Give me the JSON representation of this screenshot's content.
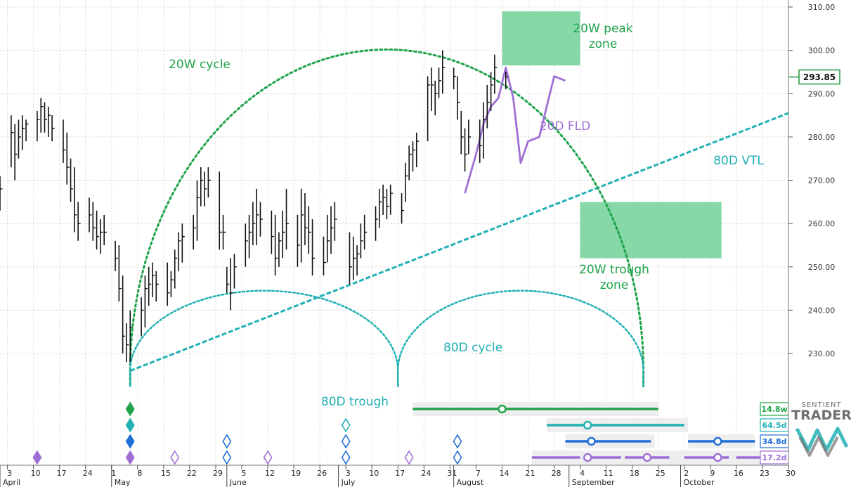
{
  "chart_data": {
    "type": "ohlc",
    "ylim": [
      220,
      312
    ],
    "x_range": [
      "2025-04-01",
      "2025-10-30"
    ],
    "y_ticks": [
      "310.00",
      "300.00",
      "290.00",
      "280.00",
      "270.00",
      "260.00",
      "250.00",
      "240.00",
      "230.00"
    ],
    "y_tick_values": [
      310,
      300,
      290,
      280,
      270,
      260,
      250,
      240,
      230
    ],
    "x_ticks": [
      "3",
      "10",
      "17",
      "24",
      "1",
      "8",
      "15",
      "22",
      "29",
      "5",
      "12",
      "19",
      "26",
      "3",
      "10",
      "17",
      "24",
      "31",
      "7",
      "14",
      "21",
      "28",
      "4",
      "11",
      "18",
      "25",
      "2",
      "9",
      "16",
      "23",
      "30"
    ],
    "x_tick_dates": [
      "2025-04-03",
      "2025-04-10",
      "2025-04-17",
      "2025-04-24",
      "2025-05-01",
      "2025-05-08",
      "2025-05-15",
      "2025-05-22",
      "2025-05-29",
      "2025-06-05",
      "2025-06-12",
      "2025-06-19",
      "2025-06-26",
      "2025-07-03",
      "2025-07-10",
      "2025-07-17",
      "2025-07-24",
      "2025-07-31",
      "2025-08-07",
      "2025-08-14",
      "2025-08-21",
      "2025-08-28",
      "2025-09-04",
      "2025-09-11",
      "2025-09-18",
      "2025-09-25",
      "2025-10-02",
      "2025-10-09",
      "2025-10-16",
      "2025-10-23",
      "2025-10-30"
    ],
    "months": [
      {
        "label": "April",
        "date": "2025-04-01"
      },
      {
        "label": "May",
        "date": "2025-05-01"
      },
      {
        "label": "June",
        "date": "2025-06-01"
      },
      {
        "label": "July",
        "date": "2025-07-01"
      },
      {
        "label": "August",
        "date": "2025-08-01"
      },
      {
        "label": "September",
        "date": "2025-09-01"
      },
      {
        "label": "October",
        "date": "2025-10-01"
      }
    ],
    "last_price": {
      "label": "293.85",
      "value": 293.85,
      "color": "#1a9a3c"
    },
    "price_bars": [
      {
        "date": "2025-04-01",
        "high": 271,
        "low": 263,
        "close": 268
      },
      {
        "date": "2025-04-04",
        "high": 285,
        "low": 273,
        "close": 281
      },
      {
        "date": "2025-04-05",
        "high": 283,
        "low": 270,
        "close": 276
      },
      {
        "date": "2025-04-06",
        "high": 284,
        "low": 275,
        "close": 280
      },
      {
        "date": "2025-04-07",
        "high": 285,
        "low": 277,
        "close": 282
      },
      {
        "date": "2025-04-08",
        "high": 284,
        "low": 279,
        "close": 283
      },
      {
        "date": "2025-04-11",
        "high": 286,
        "low": 279,
        "close": 284
      },
      {
        "date": "2025-04-12",
        "high": 289,
        "low": 281,
        "close": 287
      },
      {
        "date": "2025-04-13",
        "high": 288,
        "low": 281,
        "close": 284
      },
      {
        "date": "2025-04-14",
        "high": 287,
        "low": 280,
        "close": 285
      },
      {
        "date": "2025-04-15",
        "high": 285,
        "low": 279,
        "close": 282
      },
      {
        "date": "2025-04-18",
        "high": 284,
        "low": 274,
        "close": 277
      },
      {
        "date": "2025-04-19",
        "high": 281,
        "low": 269,
        "close": 273
      },
      {
        "date": "2025-04-20",
        "high": 275,
        "low": 265,
        "close": 268
      },
      {
        "date": "2025-04-21",
        "high": 273,
        "low": 258,
        "close": 262
      },
      {
        "date": "2025-04-22",
        "high": 265,
        "low": 256,
        "close": 260
      },
      {
        "date": "2025-04-25",
        "high": 266,
        "low": 258,
        "close": 262
      },
      {
        "date": "2025-04-26",
        "high": 265,
        "low": 256,
        "close": 259
      },
      {
        "date": "2025-04-27",
        "high": 263,
        "low": 254,
        "close": 257
      },
      {
        "date": "2025-04-28",
        "high": 261,
        "low": 253,
        "close": 258
      },
      {
        "date": "2025-04-29",
        "high": 262,
        "low": 255,
        "close": 258
      },
      {
        "date": "2025-05-02",
        "high": 256,
        "low": 249,
        "close": 252
      },
      {
        "date": "2025-05-03",
        "high": 255,
        "low": 242,
        "close": 245
      },
      {
        "date": "2025-05-04",
        "high": 248,
        "low": 230,
        "close": 234
      },
      {
        "date": "2025-05-05",
        "high": 237,
        "low": 228,
        "close": 232
      },
      {
        "date": "2025-05-06",
        "high": 240,
        "low": 228,
        "close": 236
      },
      {
        "date": "2025-05-09",
        "high": 243,
        "low": 234,
        "close": 240
      },
      {
        "date": "2025-05-10",
        "high": 248,
        "low": 236,
        "close": 245
      },
      {
        "date": "2025-05-11",
        "high": 250,
        "low": 241,
        "close": 246
      },
      {
        "date": "2025-05-12",
        "high": 251,
        "low": 243,
        "close": 248
      },
      {
        "date": "2025-05-13",
        "high": 249,
        "low": 242,
        "close": 246
      },
      {
        "date": "2025-05-16",
        "high": 251,
        "low": 241,
        "close": 244
      },
      {
        "date": "2025-05-17",
        "high": 249,
        "low": 243,
        "close": 247
      },
      {
        "date": "2025-05-18",
        "high": 254,
        "low": 245,
        "close": 252
      },
      {
        "date": "2025-05-19",
        "high": 258,
        "low": 249,
        "close": 256
      },
      {
        "date": "2025-05-20",
        "high": 260,
        "low": 251,
        "close": 257
      },
      {
        "date": "2025-05-23",
        "high": 262,
        "low": 254,
        "close": 259
      },
      {
        "date": "2025-05-24",
        "high": 270,
        "low": 256,
        "close": 266
      },
      {
        "date": "2025-05-25",
        "high": 273,
        "low": 264,
        "close": 270
      },
      {
        "date": "2025-05-26",
        "high": 272,
        "low": 264,
        "close": 268
      },
      {
        "date": "2025-05-27",
        "high": 273,
        "low": 266,
        "close": 270
      },
      {
        "date": "2025-05-30",
        "high": 272,
        "low": 254,
        "close": 258
      },
      {
        "date": "2025-05-31",
        "high": 262,
        "low": 254,
        "close": 258
      },
      {
        "date": "2025-06-01",
        "high": 250,
        "low": 244,
        "close": 246
      },
      {
        "date": "2025-06-02",
        "high": 252,
        "low": 240,
        "close": 244
      },
      {
        "date": "2025-06-03",
        "high": 253,
        "low": 245,
        "close": 250
      },
      {
        "date": "2025-06-06",
        "high": 260,
        "low": 250,
        "close": 256
      },
      {
        "date": "2025-06-07",
        "high": 262,
        "low": 252,
        "close": 258
      },
      {
        "date": "2025-06-08",
        "high": 265,
        "low": 255,
        "close": 260
      },
      {
        "date": "2025-06-09",
        "high": 268,
        "low": 255,
        "close": 262
      },
      {
        "date": "2025-06-10",
        "high": 265,
        "low": 257,
        "close": 261
      },
      {
        "date": "2025-06-13",
        "high": 263,
        "low": 253,
        "close": 257
      },
      {
        "date": "2025-06-14",
        "high": 262,
        "low": 248,
        "close": 252
      },
      {
        "date": "2025-06-15",
        "high": 258,
        "low": 250,
        "close": 256
      },
      {
        "date": "2025-06-16",
        "high": 263,
        "low": 252,
        "close": 258
      },
      {
        "date": "2025-06-17",
        "high": 268,
        "low": 254,
        "close": 260
      },
      {
        "date": "2025-06-20",
        "high": 262,
        "low": 250,
        "close": 255
      },
      {
        "date": "2025-06-21",
        "high": 268,
        "low": 251,
        "close": 262
      },
      {
        "date": "2025-06-22",
        "high": 267,
        "low": 255,
        "close": 259
      },
      {
        "date": "2025-06-23",
        "high": 264,
        "low": 253,
        "close": 258
      },
      {
        "date": "2025-06-24",
        "high": 261,
        "low": 248,
        "close": 252
      },
      {
        "date": "2025-06-27",
        "high": 257,
        "low": 248,
        "close": 251
      },
      {
        "date": "2025-06-28",
        "high": 262,
        "low": 251,
        "close": 256
      },
      {
        "date": "2025-06-29",
        "high": 264,
        "low": 253,
        "close": 259
      },
      {
        "date": "2025-06-30",
        "high": 265,
        "low": 256,
        "close": 261
      },
      {
        "date": "2025-07-04",
        "high": 258,
        "low": 246,
        "close": 250
      },
      {
        "date": "2025-07-05",
        "high": 257,
        "low": 247,
        "close": 252
      },
      {
        "date": "2025-07-06",
        "high": 255,
        "low": 248,
        "close": 253
      },
      {
        "date": "2025-07-07",
        "high": 260,
        "low": 252,
        "close": 256
      },
      {
        "date": "2025-07-08",
        "high": 262,
        "low": 254,
        "close": 258
      },
      {
        "date": "2025-07-11",
        "high": 264,
        "low": 256,
        "close": 261
      },
      {
        "date": "2025-07-12",
        "high": 268,
        "low": 259,
        "close": 265
      },
      {
        "date": "2025-07-13",
        "high": 269,
        "low": 262,
        "close": 266
      },
      {
        "date": "2025-07-14",
        "high": 268,
        "low": 261,
        "close": 264
      },
      {
        "date": "2025-07-15",
        "high": 269,
        "low": 262,
        "close": 267
      },
      {
        "date": "2025-07-18",
        "high": 267,
        "low": 260,
        "close": 263
      },
      {
        "date": "2025-07-19",
        "high": 274,
        "low": 265,
        "close": 271
      },
      {
        "date": "2025-07-20",
        "high": 278,
        "low": 270,
        "close": 276
      },
      {
        "date": "2025-07-21",
        "high": 279,
        "low": 272,
        "close": 277
      },
      {
        "date": "2025-07-22",
        "high": 281,
        "low": 273,
        "close": 279
      },
      {
        "date": "2025-07-25",
        "high": 294,
        "low": 279,
        "close": 292
      },
      {
        "date": "2025-07-26",
        "high": 296,
        "low": 286,
        "close": 292
      },
      {
        "date": "2025-07-27",
        "high": 293,
        "low": 285,
        "close": 290
      },
      {
        "date": "2025-07-28",
        "high": 296,
        "low": 289,
        "close": 293
      },
      {
        "date": "2025-07-29",
        "high": 300,
        "low": 290,
        "close": 296
      },
      {
        "date": "2025-08-01",
        "high": 296,
        "low": 291,
        "close": 294
      },
      {
        "date": "2025-08-02",
        "high": 294,
        "low": 284,
        "close": 288
      },
      {
        "date": "2025-08-03",
        "high": 286,
        "low": 276,
        "close": 280
      },
      {
        "date": "2025-08-04",
        "high": 282,
        "low": 272,
        "close": 276
      },
      {
        "date": "2025-08-05",
        "high": 284,
        "low": 276,
        "close": 280
      },
      {
        "date": "2025-08-08",
        "high": 284,
        "low": 274,
        "close": 278
      },
      {
        "date": "2025-08-09",
        "high": 288,
        "low": 275,
        "close": 284
      },
      {
        "date": "2025-08-10",
        "high": 292,
        "low": 282,
        "close": 288
      },
      {
        "date": "2025-08-11",
        "high": 295,
        "low": 286,
        "close": 292
      },
      {
        "date": "2025-08-12",
        "high": 299,
        "low": 290,
        "close": 296
      },
      {
        "date": "2025-08-15",
        "high": 295,
        "low": 291,
        "close": 293.85
      }
    ],
    "fld": {
      "name": "20D FLD",
      "color": "#9f6fd6",
      "points": [
        {
          "date": "2025-08-04",
          "value": 267
        },
        {
          "date": "2025-08-07",
          "value": 276
        },
        {
          "date": "2025-08-09",
          "value": 283
        },
        {
          "date": "2025-08-11",
          "value": 287
        },
        {
          "date": "2025-08-13",
          "value": 289
        },
        {
          "date": "2025-08-15",
          "value": 296
        },
        {
          "date": "2025-08-17",
          "value": 289
        },
        {
          "date": "2025-08-19",
          "value": 274
        },
        {
          "date": "2025-08-21",
          "value": 279
        },
        {
          "date": "2025-08-24",
          "value": 280
        },
        {
          "date": "2025-08-26",
          "value": 287
        },
        {
          "date": "2025-08-28",
          "value": 294
        },
        {
          "date": "2025-08-31",
          "value": 293
        }
      ]
    },
    "vtl": {
      "name": "80D VTL",
      "color": "#21b0b4",
      "start": {
        "date": "2025-05-06",
        "value": 226
      },
      "end": {
        "date": "2025-10-30",
        "value": 285.5
      }
    },
    "arcs": [
      {
        "name": "20W cycle",
        "color": "#1fa34a",
        "start": "2025-05-06",
        "end": "2025-09-21",
        "baseline": 226,
        "peak": 300.2,
        "peak_date": "2025-07-28"
      },
      {
        "name": "80D trough arc 1",
        "color": "#21b0b4",
        "start": "2025-05-06",
        "end": "2025-07-17",
        "baseline": 226,
        "peak": 244.5
      },
      {
        "name": "80D trough arc 2",
        "color": "#21b0b4",
        "start": "2025-07-17",
        "end": "2025-09-21",
        "baseline": 226,
        "peak": 244.5
      }
    ],
    "zones": [
      {
        "label": "20W peak\nzone",
        "color": "#7fd6a1",
        "start": "2025-08-14",
        "end": "2025-09-04",
        "top": 309,
        "bottom": 296.5
      },
      {
        "label": "20W trough\nzone",
        "color": "#7fd6a1",
        "start": "2025-09-04",
        "end": "2025-10-12",
        "top": 265,
        "bottom": 252
      }
    ],
    "annotations": [
      {
        "text": "20W cycle",
        "color": "#1fa34a"
      },
      {
        "text": "20W peak",
        "color": "#1fa34a"
      },
      {
        "text": "zone",
        "color": "#1fa34a"
      },
      {
        "text": "20D FLD",
        "color": "#9f6fd6"
      },
      {
        "text": "80D VTL",
        "color": "#21b0b4"
      },
      {
        "text": "20W trough",
        "color": "#1fa34a"
      },
      {
        "text": "zone",
        "color": "#1fa34a"
      },
      {
        "text": "80D cycle",
        "color": "#21b0b4"
      },
      {
        "text": "80D trough",
        "color": "#21b0b4"
      }
    ],
    "cycle_markers": [
      {
        "date": "2025-05-06",
        "row": 0,
        "color": "#1fa34a",
        "filled": true
      },
      {
        "date": "2025-05-06",
        "row": 1,
        "color": "#21b0b4",
        "filled": true
      },
      {
        "date": "2025-05-06",
        "row": 2,
        "color": "#1f6fd6",
        "filled": true
      },
      {
        "date": "2025-05-06",
        "row": 3,
        "color": "#9f6fd6",
        "filled": true
      },
      {
        "date": "2025-04-11",
        "row": 3,
        "color": "#9f6fd6",
        "filled": true
      },
      {
        "date": "2025-05-18",
        "row": 3,
        "color": "#9f6fd6",
        "filled": false
      },
      {
        "date": "2025-06-01",
        "row": 2,
        "color": "#1f6fd6",
        "filled": false
      },
      {
        "date": "2025-06-01",
        "row": 3,
        "color": "#1f6fd6",
        "filled": false
      },
      {
        "date": "2025-06-12",
        "row": 3,
        "color": "#9f6fd6",
        "filled": false
      },
      {
        "date": "2025-07-03",
        "row": 1,
        "color": "#21b0b4",
        "filled": false
      },
      {
        "date": "2025-07-03",
        "row": 2,
        "color": "#1f6fd6",
        "filled": false
      },
      {
        "date": "2025-07-03",
        "row": 3,
        "color": "#1f6fd6",
        "filled": false
      },
      {
        "date": "2025-07-20",
        "row": 3,
        "color": "#9f6fd6",
        "filled": false
      },
      {
        "date": "2025-08-02",
        "row": 2,
        "color": "#1f6fd6",
        "filled": false
      },
      {
        "date": "2025-08-02",
        "row": 3,
        "color": "#1f6fd6",
        "filled": false
      }
    ],
    "cycle_projections": [
      {
        "label": "14.8w",
        "color": "#1fa34a",
        "row": 0,
        "start": "2025-07-21",
        "end": "2025-09-25",
        "center": "2025-08-14",
        "band_start": "2025-07-21",
        "band_end": "2025-09-25"
      },
      {
        "label": "64.5d",
        "color": "#21b0b4",
        "row": 1,
        "start": "2025-08-26",
        "end": "2025-10-02",
        "center": "2025-09-06",
        "band_start": "2025-08-26",
        "band_end": "2025-10-03"
      },
      {
        "label": "34.8d",
        "color": "#1f6fd6",
        "row": 2,
        "start": "2025-08-31",
        "end": "2025-09-23",
        "center": "2025-09-07",
        "band_start": "2025-08-31",
        "band_end": "2025-09-24",
        "start2": "2025-10-03",
        "end2": "2025-10-21",
        "center2": "2025-10-11",
        "band_start2": "2025-10-03",
        "band_end2": "2025-10-21"
      },
      {
        "label": "17.2d",
        "color": "#9f6fd6",
        "row": 3,
        "segments": [
          [
            "2025-08-22",
            "2025-09-04"
          ],
          [
            "2025-09-05",
            "2025-09-15"
          ],
          [
            "2025-09-16",
            "2025-09-28"
          ],
          [
            "2025-10-02",
            "2025-10-14"
          ],
          [
            "2025-10-16",
            "2025-10-30"
          ]
        ],
        "centers": [
          "2025-09-06",
          "2025-09-22",
          "2025-10-11"
        ]
      }
    ]
  },
  "brand": {
    "line1": "SENTIENT",
    "line2": "TRADER"
  }
}
